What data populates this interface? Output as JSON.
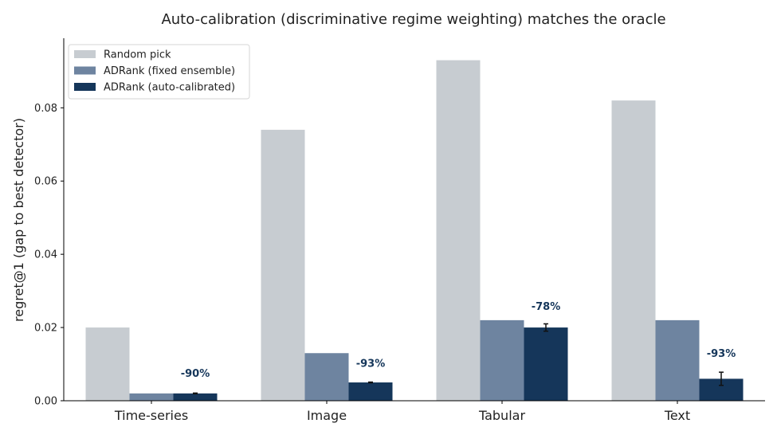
{
  "chart_data": {
    "type": "bar",
    "title": "Auto-calibration (discriminative regime weighting) matches the oracle",
    "xlabel": "",
    "ylabel": "regret@1 (gap to best detector)",
    "categories": [
      "Time-series",
      "Image",
      "Tabular",
      "Text"
    ],
    "ylim": [
      0,
      0.099
    ],
    "yticks": [
      0.0,
      0.02,
      0.04,
      0.06,
      0.08
    ],
    "ytick_labels": [
      "0.00",
      "0.02",
      "0.04",
      "0.06",
      "0.08"
    ],
    "grid": false,
    "legend_position": "top-left",
    "series": [
      {
        "name": "Random pick",
        "color": "#c7ccd1",
        "values": [
          0.02,
          0.074,
          0.093,
          0.082
        ]
      },
      {
        "name": "ADRank (fixed ensemble)",
        "color": "#6e84a0",
        "values": [
          0.002,
          0.013,
          0.022,
          0.022
        ]
      },
      {
        "name": "ADRank (auto-calibrated)",
        "color": "#15365a",
        "values": [
          0.002,
          0.005,
          0.02,
          0.006
        ],
        "errors": [
          0.0001,
          0.0001,
          0.001,
          0.0018
        ]
      }
    ],
    "annotations": [
      {
        "category": "Time-series",
        "text": "-90%",
        "y": 0.0065
      },
      {
        "category": "Image",
        "text": "-93%",
        "y": 0.0093
      },
      {
        "category": "Tabular",
        "text": "-78%",
        "y": 0.0248
      },
      {
        "category": "Text",
        "text": "-93%",
        "y": 0.012
      }
    ],
    "annotation_color": "#15365a"
  }
}
